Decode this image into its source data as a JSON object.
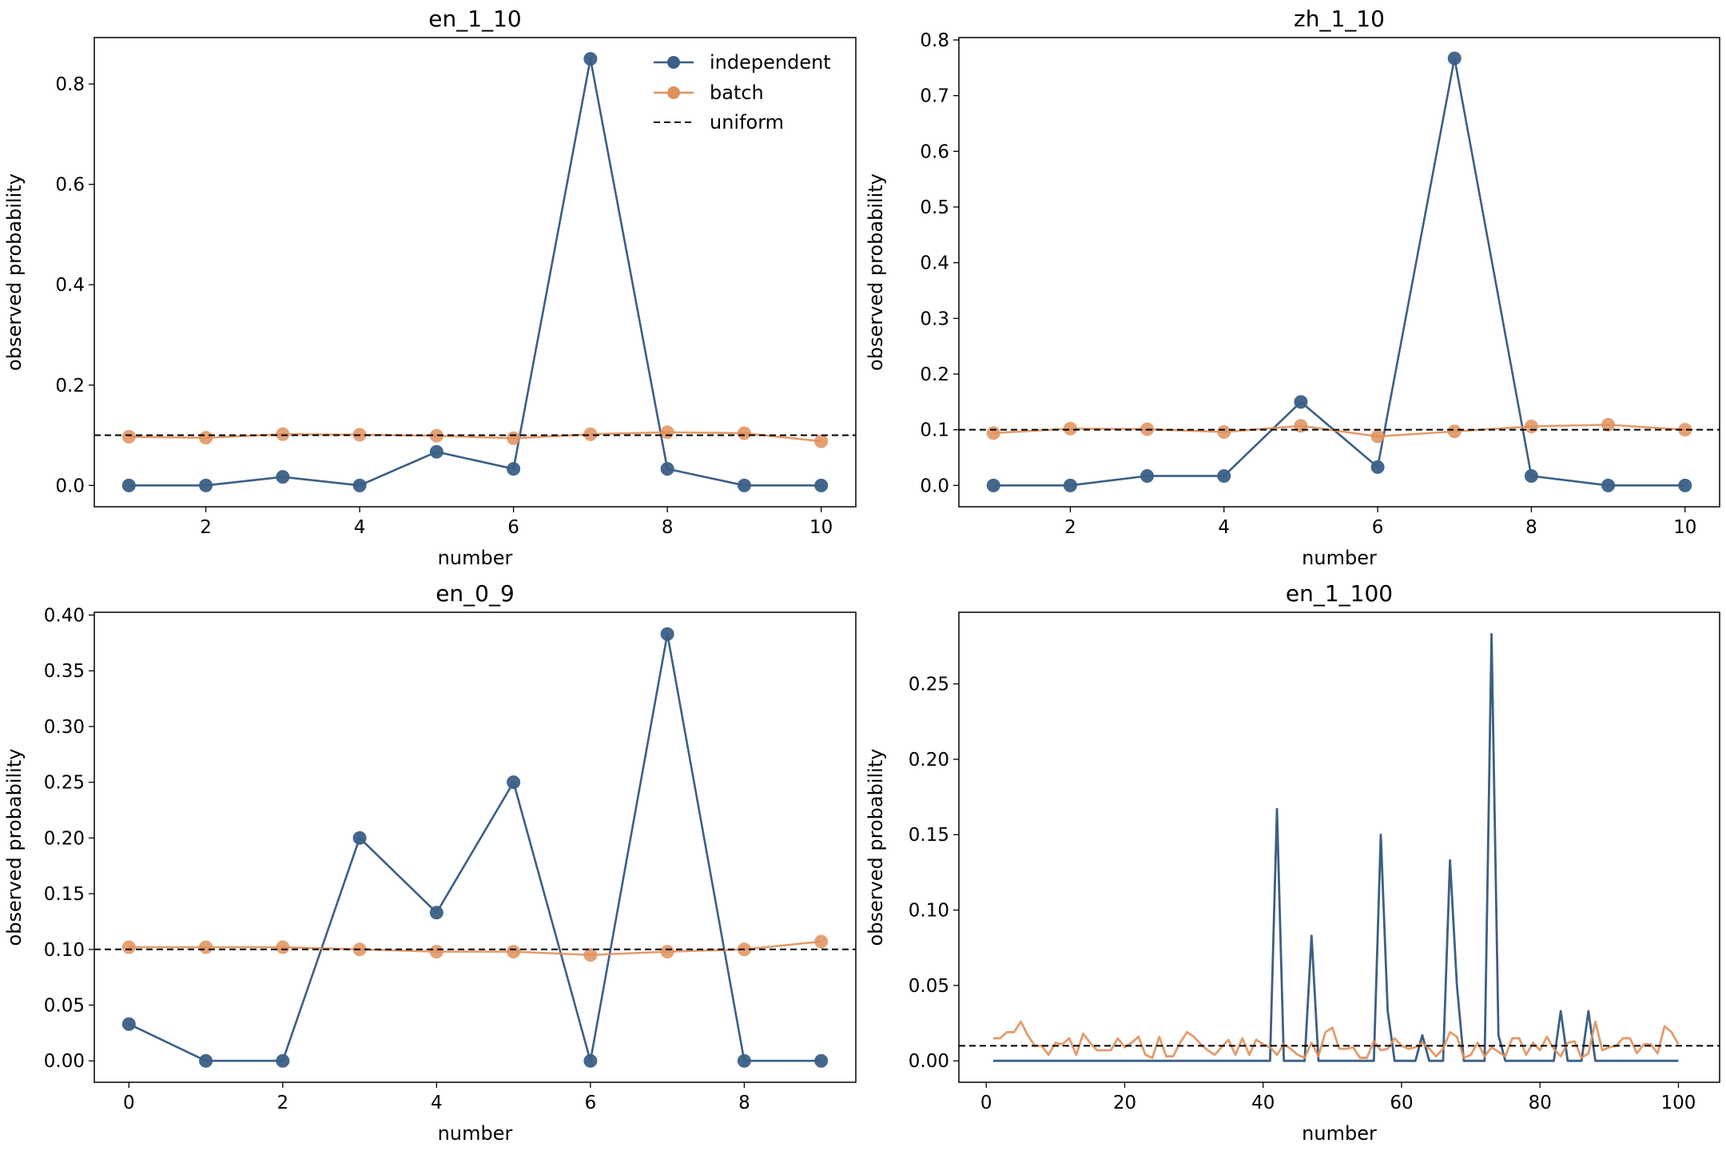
{
  "colors": {
    "independent": "#3b5f86",
    "batch": "#e0915c",
    "uniform": "#000000"
  },
  "legend": [
    "independent",
    "batch",
    "uniform"
  ],
  "chart_data": [
    {
      "type": "line",
      "title": "en_1_10",
      "xlabel": "number",
      "ylabel": "observed probability",
      "xlim": [
        0.55,
        10.45
      ],
      "ylim": [
        -0.0425,
        0.8925
      ],
      "xticks": [
        2,
        4,
        6,
        8,
        10
      ],
      "yticks": [
        0.0,
        0.2,
        0.4,
        0.6,
        0.8
      ],
      "ytick_labels": [
        "0.0",
        "0.2",
        "0.4",
        "0.6",
        "0.8"
      ],
      "legend_position": "top-right",
      "markers": true,
      "x": [
        1,
        2,
        3,
        4,
        5,
        6,
        7,
        8,
        9,
        10
      ],
      "series": [
        {
          "name": "independent",
          "values": [
            0.0,
            0.0,
            0.017,
            0.0,
            0.067,
            0.033,
            0.85,
            0.033,
            0.0,
            0.0
          ]
        },
        {
          "name": "batch",
          "values": [
            0.097,
            0.095,
            0.102,
            0.101,
            0.099,
            0.094,
            0.102,
            0.106,
            0.104,
            0.088
          ]
        }
      ],
      "uniform": 0.1
    },
    {
      "type": "line",
      "title": "zh_1_10",
      "xlabel": "number",
      "ylabel": "observed probability",
      "xlim": [
        0.55,
        10.45
      ],
      "ylim": [
        -0.0383,
        0.8043
      ],
      "xticks": [
        2,
        4,
        6,
        8,
        10
      ],
      "yticks": [
        0.0,
        0.1,
        0.2,
        0.3,
        0.4,
        0.5,
        0.6,
        0.7,
        0.8
      ],
      "ytick_labels": [
        "0.0",
        "0.1",
        "0.2",
        "0.3",
        "0.4",
        "0.5",
        "0.6",
        "0.7",
        "0.8"
      ],
      "markers": true,
      "x": [
        1,
        2,
        3,
        4,
        5,
        6,
        7,
        8,
        9,
        10
      ],
      "series": [
        {
          "name": "independent",
          "values": [
            0.0,
            0.0,
            0.017,
            0.017,
            0.15,
            0.033,
            0.767,
            0.017,
            0.0,
            0.0
          ]
        },
        {
          "name": "batch",
          "values": [
            0.094,
            0.102,
            0.101,
            0.096,
            0.107,
            0.088,
            0.097,
            0.106,
            0.109,
            0.1
          ]
        }
      ],
      "uniform": 0.1
    },
    {
      "type": "line",
      "title": "en_0_9",
      "xlabel": "number",
      "ylabel": "observed probability",
      "xlim": [
        -0.45,
        9.45
      ],
      "ylim": [
        -0.0192,
        0.4025
      ],
      "xticks": [
        0,
        2,
        4,
        6,
        8
      ],
      "yticks": [
        0.0,
        0.05,
        0.1,
        0.15,
        0.2,
        0.25,
        0.3,
        0.35,
        0.4
      ],
      "ytick_labels": [
        "0.00",
        "0.05",
        "0.10",
        "0.15",
        "0.20",
        "0.25",
        "0.30",
        "0.35",
        "0.40"
      ],
      "markers": true,
      "x": [
        0,
        1,
        2,
        3,
        4,
        5,
        6,
        7,
        8,
        9
      ],
      "series": [
        {
          "name": "independent",
          "values": [
            0.033,
            0.0,
            0.0,
            0.2,
            0.133,
            0.25,
            0.0,
            0.383,
            0.0,
            0.0
          ]
        },
        {
          "name": "batch",
          "values": [
            0.102,
            0.102,
            0.102,
            0.1,
            0.098,
            0.098,
            0.095,
            0.098,
            0.1,
            0.107
          ]
        }
      ],
      "uniform": 0.1
    },
    {
      "type": "line",
      "title": "en_1_100",
      "xlabel": "number",
      "ylabel": "observed probability",
      "xlim": [
        -3.95,
        105.95
      ],
      "ylim": [
        -0.0142,
        0.2975
      ],
      "xticks": [
        0,
        20,
        40,
        60,
        80,
        100
      ],
      "yticks": [
        0.0,
        0.05,
        0.1,
        0.15,
        0.2,
        0.25
      ],
      "ytick_labels": [
        "0.00",
        "0.05",
        "0.10",
        "0.15",
        "0.20",
        "0.25"
      ],
      "markers": false,
      "x": [
        1,
        2,
        3,
        4,
        5,
        6,
        7,
        8,
        9,
        10,
        11,
        12,
        13,
        14,
        15,
        16,
        17,
        18,
        19,
        20,
        21,
        22,
        23,
        24,
        25,
        26,
        27,
        28,
        29,
        30,
        31,
        32,
        33,
        34,
        35,
        36,
        37,
        38,
        39,
        40,
        41,
        42,
        43,
        44,
        45,
        46,
        47,
        48,
        49,
        50,
        51,
        52,
        53,
        54,
        55,
        56,
        57,
        58,
        59,
        60,
        61,
        62,
        63,
        64,
        65,
        66,
        67,
        68,
        69,
        70,
        71,
        72,
        73,
        74,
        75,
        76,
        77,
        78,
        79,
        80,
        81,
        82,
        83,
        84,
        85,
        86,
        87,
        88,
        89,
        90,
        91,
        92,
        93,
        94,
        95,
        96,
        97,
        98,
        99,
        100
      ],
      "series": [
        {
          "name": "independent",
          "values": [
            0,
            0,
            0,
            0,
            0,
            0,
            0,
            0,
            0,
            0,
            0,
            0,
            0,
            0,
            0,
            0,
            0,
            0,
            0,
            0,
            0,
            0,
            0,
            0,
            0,
            0,
            0,
            0,
            0,
            0,
            0,
            0,
            0,
            0,
            0,
            0,
            0,
            0,
            0,
            0,
            0,
            0.167,
            0,
            0,
            0,
            0,
            0.083,
            0,
            0,
            0,
            0,
            0,
            0,
            0,
            0,
            0,
            0.15,
            0.033,
            0,
            0,
            0,
            0,
            0.017,
            0,
            0,
            0,
            0.133,
            0.05,
            0,
            0,
            0,
            0,
            0.283,
            0.017,
            0,
            0,
            0,
            0,
            0,
            0,
            0,
            0,
            0.033,
            0,
            0,
            0,
            0.033,
            0,
            0,
            0,
            0,
            0,
            0,
            0,
            0,
            0,
            0,
            0,
            0,
            0
          ]
        },
        {
          "name": "batch",
          "values": [
            0.015,
            0.015,
            0.019,
            0.019,
            0.026,
            0.017,
            0.01,
            0.01,
            0.004,
            0.012,
            0.011,
            0.015,
            0.004,
            0.018,
            0.012,
            0.007,
            0.007,
            0.007,
            0.015,
            0.009,
            0.012,
            0.016,
            0.004,
            0.002,
            0.016,
            0.003,
            0.003,
            0.012,
            0.019,
            0.016,
            0.011,
            0.007,
            0.004,
            0.009,
            0.014,
            0.004,
            0.015,
            0.004,
            0.014,
            0.011,
            0.009,
            0.004,
            0.011,
            0.008,
            0.004,
            0.002,
            0.012,
            0.003,
            0.019,
            0.022,
            0.008,
            0.008,
            0.009,
            0.002,
            0.002,
            0.013,
            0.007,
            0.008,
            0.015,
            0.01,
            0.008,
            0.009,
            0.012,
            0.008,
            0.003,
            0.008,
            0.019,
            0.016,
            0.002,
            0.004,
            0.012,
            0.003,
            0.009,
            0.006,
            0.003,
            0.015,
            0.015,
            0.004,
            0.012,
            0.007,
            0.016,
            0.008,
            0.003,
            0.012,
            0.013,
            0.002,
            0.005,
            0.026,
            0.007,
            0.009,
            0.01,
            0.015,
            0.015,
            0.005,
            0.011,
            0.011,
            0.005,
            0.023,
            0.019,
            0.011
          ]
        }
      ],
      "uniform": 0.01
    }
  ]
}
